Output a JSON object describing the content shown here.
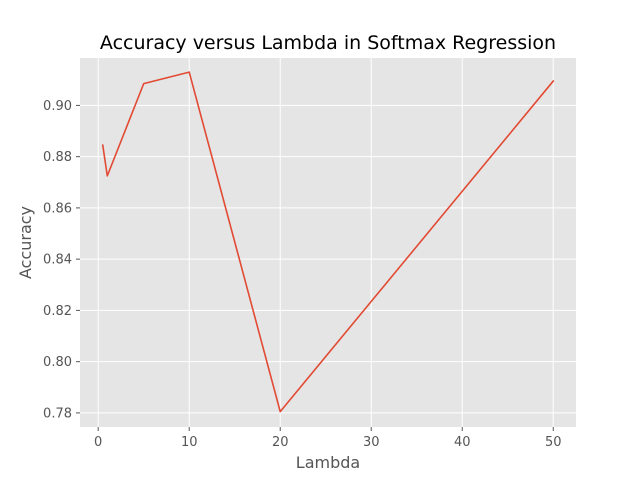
{
  "chart_data": {
    "type": "line",
    "title": "Accuracy versus Lambda in Softmax Regression",
    "xlabel": "Lambda",
    "ylabel": "Accuracy",
    "xlim": [
      -2,
      52.5
    ],
    "ylim": [
      0.7745,
      0.9185
    ],
    "xticks": [
      0,
      10,
      20,
      30,
      40,
      50
    ],
    "yticks": [
      0.78,
      0.8,
      0.82,
      0.84,
      0.86,
      0.88,
      0.9
    ],
    "ytick_labels": [
      "0.78",
      "0.80",
      "0.82",
      "0.84",
      "0.86",
      "0.88",
      "0.90"
    ],
    "grid": true,
    "legend": "none",
    "background": "#e5e5e5",
    "grid_color": "#ffffff",
    "series": [
      {
        "color": "#e24a33",
        "x": [
          0.5,
          1,
          5,
          10,
          20,
          50
        ],
        "y": [
          0.8845,
          0.8725,
          0.9085,
          0.913,
          0.7805,
          0.9095
        ]
      }
    ]
  }
}
